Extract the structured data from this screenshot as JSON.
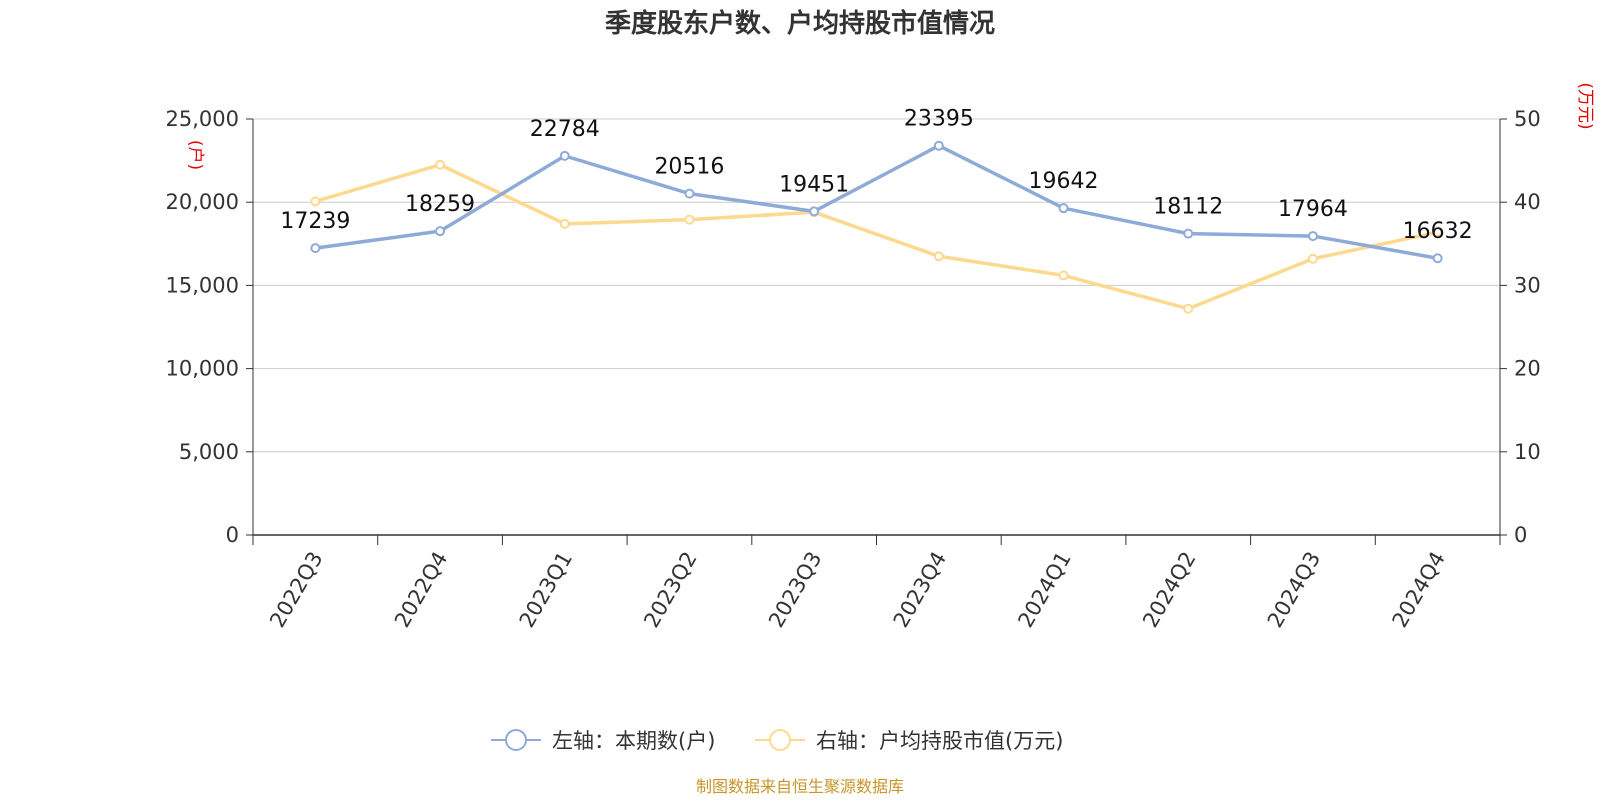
{
  "chart_data": {
    "type": "line",
    "title": "季度股东户数、户均持股市值情况",
    "categories": [
      "2022Q3",
      "2022Q4",
      "2023Q1",
      "2023Q2",
      "2023Q3",
      "2023Q4",
      "2024Q1",
      "2024Q2",
      "2024Q3",
      "2024Q4"
    ],
    "series": [
      {
        "name": "左轴：本期数(户)",
        "axis": "left",
        "color": "#8eaad8",
        "values": [
          17239,
          18259,
          22784,
          20516,
          19451,
          23395,
          19642,
          18112,
          17964,
          16632
        ],
        "labels": [
          "17239",
          "18259",
          "22784",
          "20516",
          "19451",
          "23395",
          "19642",
          "18112",
          "17964",
          "16632"
        ]
      },
      {
        "name": "右轴：户均持股市值(万元)",
        "axis": "right",
        "color": "#fcd98f",
        "values": [
          40.1,
          44.5,
          37.4,
          37.9,
          38.8,
          33.5,
          31.2,
          27.2,
          33.2,
          36.4
        ]
      }
    ],
    "left_axis": {
      "unit": "(户)",
      "ylim": [
        0,
        25000
      ],
      "ticks": [
        "0",
        "5,000",
        "10,000",
        "15,000",
        "20,000",
        "25,000"
      ]
    },
    "right_axis": {
      "unit": "(万元)",
      "ylim": [
        0,
        50
      ],
      "ticks": [
        "0",
        "10",
        "20",
        "30",
        "40",
        "50"
      ]
    },
    "grid": true,
    "legend_position": "bottom-center"
  },
  "source_note": "制图数据来自恒生聚源数据库"
}
